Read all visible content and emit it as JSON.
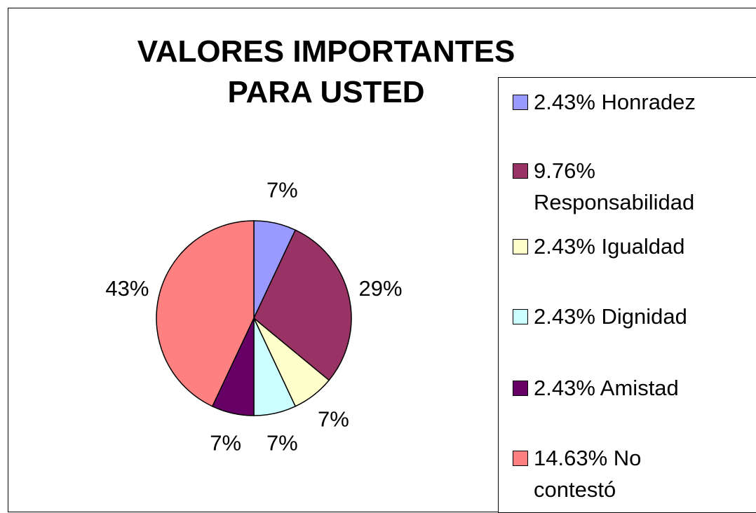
{
  "chart_data": {
    "type": "pie",
    "title": "VALORES IMPORTANTES PARA USTED",
    "categories": [
      "2.43% Honradez",
      "9.76% Responsabilidad",
      "2.43% Igualdad",
      "2.43% Dignidad",
      "2.43% Amistad",
      "14.63% No contestó"
    ],
    "values": [
      7,
      29,
      7,
      7,
      7,
      43
    ],
    "value_labels": [
      "7%",
      "29%",
      "7%",
      "7%",
      "7%",
      "43%"
    ],
    "colors": [
      "#9999ff",
      "#993366",
      "#ffffcc",
      "#ccffff",
      "#660066",
      "#ff8080"
    ],
    "legend": "right"
  }
}
